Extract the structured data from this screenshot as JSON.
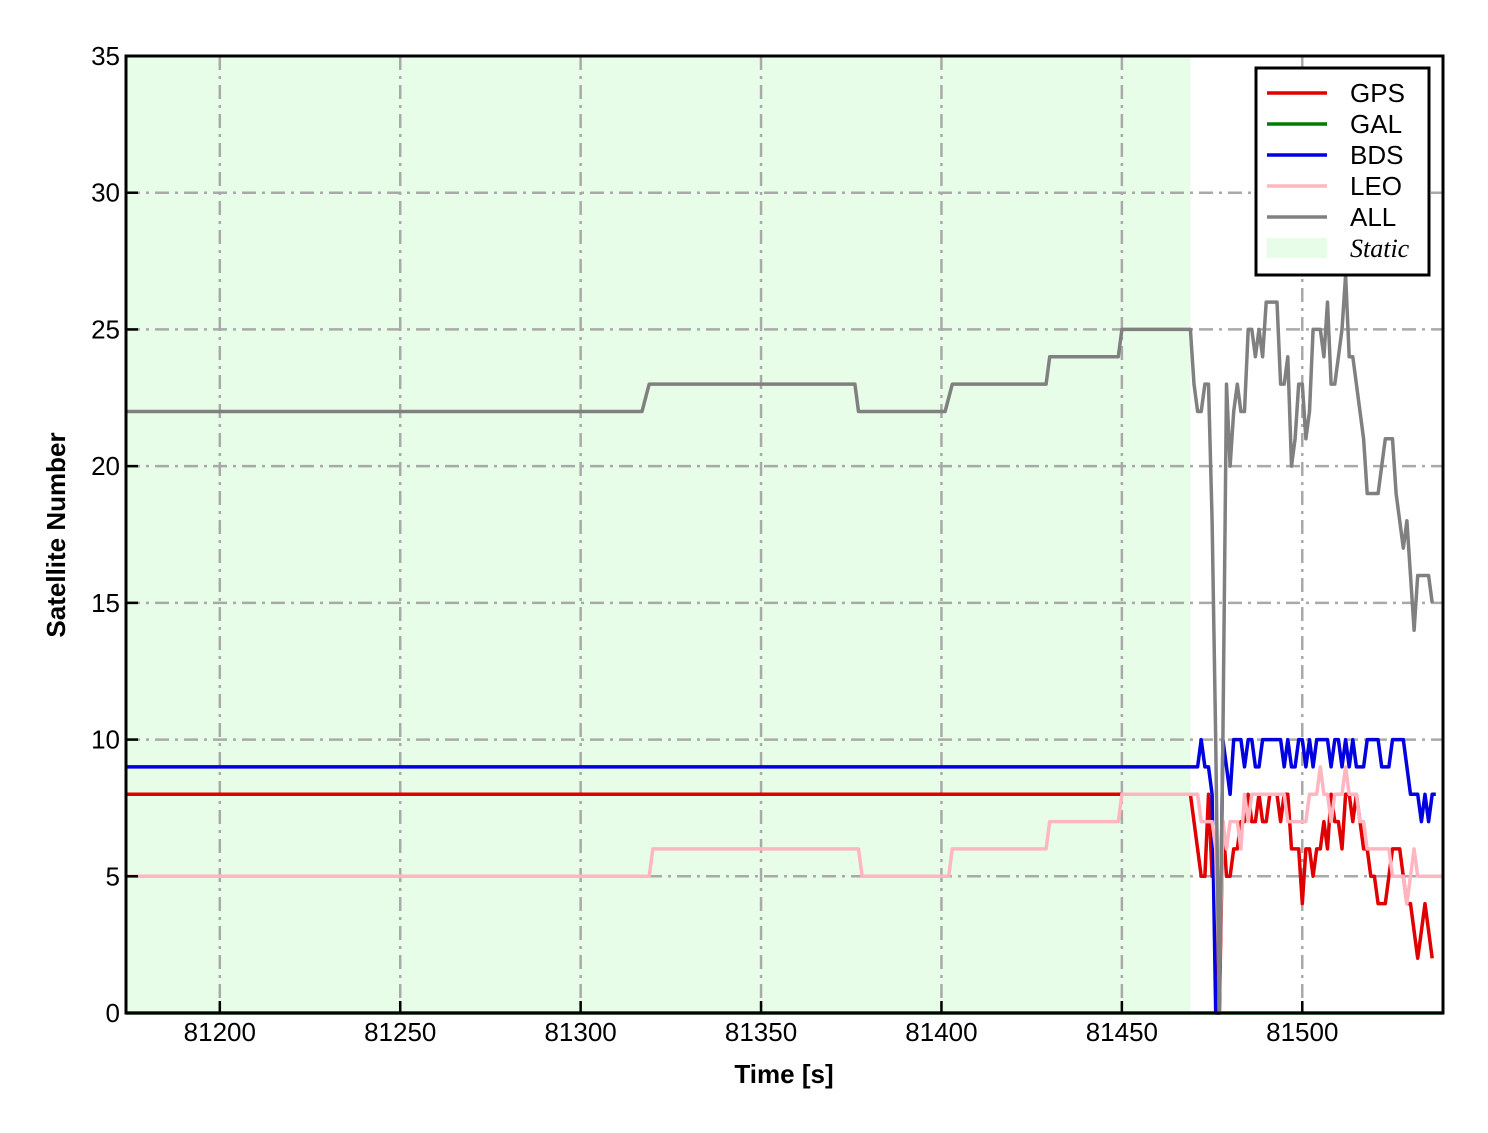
{
  "chart_data": {
    "type": "line",
    "xlabel": "Time [s]",
    "ylabel": "Satellite Number",
    "xlim": [
      81174,
      81539
    ],
    "ylim": [
      0,
      35
    ],
    "xticks": [
      81200,
      81250,
      81300,
      81350,
      81400,
      81450,
      81500
    ],
    "yticks": [
      0,
      5,
      10,
      15,
      20,
      25,
      30,
      35
    ],
    "grid": true,
    "legend_position": "top-right",
    "static_region": {
      "label": "Static",
      "x_start": 81174,
      "x_end": 81469,
      "color": "#e8fde8"
    },
    "series": [
      {
        "name": "GPS",
        "color": "#e00000",
        "points": [
          [
            81174,
            8
          ],
          [
            81450,
            8
          ],
          [
            81469,
            8
          ],
          [
            81471,
            6
          ],
          [
            81472,
            5
          ],
          [
            81473,
            5
          ],
          [
            81474,
            8
          ],
          [
            81475,
            5
          ],
          [
            81476,
            5
          ],
          [
            81477,
            0
          ],
          [
            81478,
            7
          ],
          [
            81479,
            5
          ],
          [
            81480,
            5
          ],
          [
            81481,
            6
          ],
          [
            81482,
            6
          ],
          [
            81483,
            7
          ],
          [
            81484,
            7
          ],
          [
            81485,
            8
          ],
          [
            81486,
            7
          ],
          [
            81487,
            7
          ],
          [
            81488,
            8
          ],
          [
            81489,
            7
          ],
          [
            81490,
            7
          ],
          [
            81491,
            8
          ],
          [
            81492,
            8
          ],
          [
            81493,
            8
          ],
          [
            81494,
            7
          ],
          [
            81495,
            8
          ],
          [
            81496,
            8
          ],
          [
            81497,
            6
          ],
          [
            81498,
            6
          ],
          [
            81499,
            6
          ],
          [
            81500,
            4
          ],
          [
            81501,
            6
          ],
          [
            81502,
            6
          ],
          [
            81503,
            5
          ],
          [
            81504,
            6
          ],
          [
            81505,
            6
          ],
          [
            81506,
            7
          ],
          [
            81507,
            6
          ],
          [
            81508,
            8
          ],
          [
            81509,
            7
          ],
          [
            81510,
            7
          ],
          [
            81511,
            6
          ],
          [
            81512,
            8
          ],
          [
            81513,
            8
          ],
          [
            81514,
            7
          ],
          [
            81515,
            8
          ],
          [
            81516,
            7
          ],
          [
            81517,
            6
          ],
          [
            81518,
            6
          ],
          [
            81519,
            5
          ],
          [
            81520,
            5
          ],
          [
            81521,
            4
          ],
          [
            81522,
            4
          ],
          [
            81523,
            4
          ],
          [
            81524,
            5
          ],
          [
            81525,
            6
          ],
          [
            81526,
            6
          ],
          [
            81527,
            6
          ],
          [
            81528,
            5
          ],
          [
            81529,
            4
          ],
          [
            81530,
            4
          ],
          [
            81531,
            3
          ],
          [
            81532,
            2
          ],
          [
            81533,
            3
          ],
          [
            81534,
            4
          ],
          [
            81535,
            3
          ],
          [
            81536,
            2
          ]
        ]
      },
      {
        "name": "GAL",
        "color": "#007d00",
        "points": [
          [
            81174,
            0
          ],
          [
            81539,
            0
          ]
        ]
      },
      {
        "name": "BDS",
        "color": "#0000e0",
        "points": [
          [
            81174,
            9
          ],
          [
            81469,
            9
          ],
          [
            81471,
            9
          ],
          [
            81472,
            10
          ],
          [
            81473,
            9
          ],
          [
            81474,
            9
          ],
          [
            81475,
            8
          ],
          [
            81476,
            0
          ],
          [
            81477,
            0
          ],
          [
            81478,
            10
          ],
          [
            81479,
            9
          ],
          [
            81480,
            8
          ],
          [
            81481,
            10
          ],
          [
            81482,
            10
          ],
          [
            81483,
            10
          ],
          [
            81484,
            9
          ],
          [
            81485,
            10
          ],
          [
            81486,
            10
          ],
          [
            81487,
            9
          ],
          [
            81488,
            9
          ],
          [
            81489,
            10
          ],
          [
            81490,
            10
          ],
          [
            81491,
            10
          ],
          [
            81492,
            10
          ],
          [
            81493,
            10
          ],
          [
            81494,
            10
          ],
          [
            81495,
            9
          ],
          [
            81496,
            10
          ],
          [
            81497,
            9
          ],
          [
            81498,
            9
          ],
          [
            81499,
            10
          ],
          [
            81500,
            10
          ],
          [
            81501,
            9
          ],
          [
            81502,
            10
          ],
          [
            81503,
            9
          ],
          [
            81504,
            10
          ],
          [
            81505,
            10
          ],
          [
            81506,
            10
          ],
          [
            81507,
            10
          ],
          [
            81508,
            9
          ],
          [
            81509,
            10
          ],
          [
            81510,
            10
          ],
          [
            81511,
            9
          ],
          [
            81512,
            10
          ],
          [
            81513,
            9
          ],
          [
            81514,
            10
          ],
          [
            81515,
            9
          ],
          [
            81516,
            9
          ],
          [
            81517,
            9
          ],
          [
            81518,
            10
          ],
          [
            81519,
            10
          ],
          [
            81520,
            10
          ],
          [
            81521,
            10
          ],
          [
            81522,
            9
          ],
          [
            81523,
            9
          ],
          [
            81524,
            9
          ],
          [
            81525,
            10
          ],
          [
            81526,
            10
          ],
          [
            81527,
            10
          ],
          [
            81528,
            10
          ],
          [
            81529,
            9
          ],
          [
            81530,
            8
          ],
          [
            81531,
            8
          ],
          [
            81532,
            8
          ],
          [
            81533,
            7
          ],
          [
            81534,
            8
          ],
          [
            81535,
            7
          ],
          [
            81536,
            8
          ],
          [
            81537,
            8
          ]
        ]
      },
      {
        "name": "LEO",
        "color": "#ffb6c1",
        "points": [
          [
            81174,
            5
          ],
          [
            81319,
            5
          ],
          [
            81320,
            6
          ],
          [
            81377,
            6
          ],
          [
            81378,
            5
          ],
          [
            81402,
            5
          ],
          [
            81403,
            6
          ],
          [
            81429,
            6
          ],
          [
            81430,
            7
          ],
          [
            81449,
            7
          ],
          [
            81450,
            8
          ],
          [
            81469,
            8
          ],
          [
            81471,
            8
          ],
          [
            81472,
            7
          ],
          [
            81473,
            7
          ],
          [
            81474,
            7
          ],
          [
            81475,
            7
          ],
          [
            81476,
            6
          ],
          [
            81477,
            1
          ],
          [
            81478,
            7
          ],
          [
            81479,
            6
          ],
          [
            81480,
            7
          ],
          [
            81481,
            7
          ],
          [
            81482,
            7
          ],
          [
            81483,
            6
          ],
          [
            81484,
            8
          ],
          [
            81485,
            7
          ],
          [
            81486,
            8
          ],
          [
            81487,
            8
          ],
          [
            81488,
            8
          ],
          [
            81489,
            8
          ],
          [
            81490,
            8
          ],
          [
            81491,
            8
          ],
          [
            81492,
            8
          ],
          [
            81493,
            8
          ],
          [
            81494,
            8
          ],
          [
            81495,
            8
          ],
          [
            81496,
            7
          ],
          [
            81497,
            7
          ],
          [
            81498,
            7
          ],
          [
            81499,
            7
          ],
          [
            81500,
            7
          ],
          [
            81501,
            7
          ],
          [
            81502,
            8
          ],
          [
            81503,
            8
          ],
          [
            81504,
            8
          ],
          [
            81505,
            9
          ],
          [
            81506,
            8
          ],
          [
            81507,
            8
          ],
          [
            81508,
            7
          ],
          [
            81509,
            8
          ],
          [
            81510,
            8
          ],
          [
            81511,
            8
          ],
          [
            81512,
            9
          ],
          [
            81513,
            8
          ],
          [
            81514,
            8
          ],
          [
            81515,
            8
          ],
          [
            81516,
            7
          ],
          [
            81517,
            7
          ],
          [
            81518,
            6
          ],
          [
            81519,
            6
          ],
          [
            81520,
            6
          ],
          [
            81521,
            6
          ],
          [
            81522,
            6
          ],
          [
            81523,
            6
          ],
          [
            81524,
            6
          ],
          [
            81525,
            5
          ],
          [
            81526,
            5
          ],
          [
            81527,
            5
          ],
          [
            81528,
            5
          ],
          [
            81529,
            4
          ],
          [
            81530,
            5
          ],
          [
            81531,
            6
          ],
          [
            81532,
            5
          ],
          [
            81533,
            5
          ],
          [
            81534,
            5
          ],
          [
            81535,
            5
          ],
          [
            81536,
            5
          ],
          [
            81537,
            5
          ],
          [
            81538,
            5
          ],
          [
            81539,
            5
          ]
        ]
      },
      {
        "name": "ALL",
        "color": "#808080",
        "points": [
          [
            81174,
            22
          ],
          [
            81317,
            22
          ],
          [
            81319,
            23
          ],
          [
            81376,
            23
          ],
          [
            81377,
            22
          ],
          [
            81401,
            22
          ],
          [
            81403,
            23
          ],
          [
            81429,
            23
          ],
          [
            81430,
            24
          ],
          [
            81449,
            24
          ],
          [
            81450,
            25
          ],
          [
            81469,
            25
          ],
          [
            81470,
            23
          ],
          [
            81471,
            22
          ],
          [
            81472,
            22
          ],
          [
            81473,
            23
          ],
          [
            81474,
            23
          ],
          [
            81475,
            18
          ],
          [
            81476,
            10
          ],
          [
            81477,
            0
          ],
          [
            81478,
            10
          ],
          [
            81479,
            23
          ],
          [
            81480,
            20
          ],
          [
            81481,
            22
          ],
          [
            81482,
            23
          ],
          [
            81483,
            22
          ],
          [
            81484,
            22
          ],
          [
            81485,
            25
          ],
          [
            81486,
            25
          ],
          [
            81487,
            24
          ],
          [
            81488,
            25
          ],
          [
            81489,
            24
          ],
          [
            81490,
            26
          ],
          [
            81491,
            26
          ],
          [
            81492,
            26
          ],
          [
            81493,
            26
          ],
          [
            81494,
            23
          ],
          [
            81495,
            23
          ],
          [
            81496,
            24
          ],
          [
            81497,
            20
          ],
          [
            81498,
            21
          ],
          [
            81499,
            23
          ],
          [
            81500,
            23
          ],
          [
            81501,
            21
          ],
          [
            81502,
            22
          ],
          [
            81503,
            25
          ],
          [
            81504,
            25
          ],
          [
            81505,
            25
          ],
          [
            81506,
            24
          ],
          [
            81507,
            26
          ],
          [
            81508,
            23
          ],
          [
            81509,
            23
          ],
          [
            81510,
            24
          ],
          [
            81511,
            25
          ],
          [
            81512,
            27
          ],
          [
            81513,
            24
          ],
          [
            81514,
            24
          ],
          [
            81515,
            23
          ],
          [
            81516,
            22
          ],
          [
            81517,
            21
          ],
          [
            81518,
            19
          ],
          [
            81519,
            19
          ],
          [
            81520,
            19
          ],
          [
            81521,
            19
          ],
          [
            81522,
            20
          ],
          [
            81523,
            21
          ],
          [
            81524,
            21
          ],
          [
            81525,
            21
          ],
          [
            81526,
            19
          ],
          [
            81527,
            18
          ],
          [
            81528,
            17
          ],
          [
            81529,
            18
          ],
          [
            81530,
            16
          ],
          [
            81531,
            14
          ],
          [
            81532,
            16
          ],
          [
            81533,
            16
          ],
          [
            81534,
            16
          ],
          [
            81535,
            16
          ],
          [
            81536,
            15
          ]
        ]
      }
    ]
  }
}
